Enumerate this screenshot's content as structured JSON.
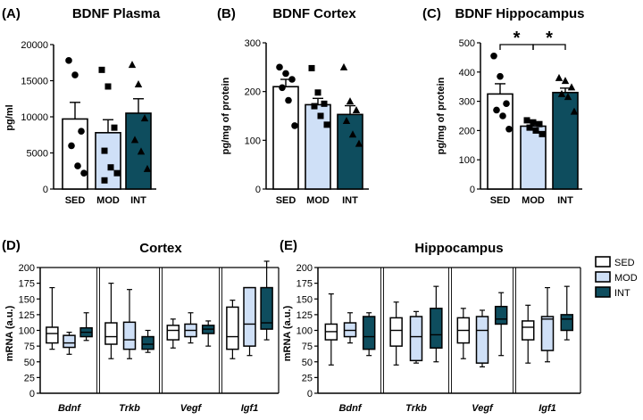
{
  "colors": {
    "sed": "#ffffff",
    "mod": "#cfe0f7",
    "int": "#0e4d5e",
    "stroke": "#000000"
  },
  "chart_data": [
    {
      "panel_label": "(A)",
      "title": "BDNF Plasma",
      "type": "bar",
      "ylabel": "pg/ml",
      "ylim": [
        0,
        20000
      ],
      "yticks": [
        0,
        5000,
        10000,
        15000,
        20000
      ],
      "ytick_labels": [
        "0",
        "5000",
        "10000",
        "15000",
        "20000"
      ],
      "categories": [
        "SED",
        "MOD",
        "INT"
      ],
      "values": [
        9700,
        7800,
        10500
      ],
      "sem": [
        2300,
        1800,
        2000
      ],
      "points": [
        [
          17800,
          15800,
          8000,
          6000,
          3200,
          2200
        ],
        [
          16500,
          14200,
          8500,
          5300,
          3000,
          2200,
          1200
        ],
        [
          17200,
          14500,
          9800,
          6800,
          5200,
          2800
        ]
      ],
      "significance": []
    },
    {
      "panel_label": "(B)",
      "title": "BDNF Cortex",
      "type": "bar",
      "ylabel": "pg/mg of protein",
      "ylim": [
        0,
        300
      ],
      "yticks": [
        0,
        100,
        200,
        300
      ],
      "ytick_labels": [
        "0",
        "100",
        "200",
        "300"
      ],
      "categories": [
        "SED",
        "MOD",
        "INT"
      ],
      "values": [
        210,
        173,
        153
      ],
      "sem": [
        15,
        13,
        18
      ],
      "points": [
        [
          250,
          237,
          225,
          208,
          182,
          130
        ],
        [
          248,
          198,
          175,
          170,
          150,
          132
        ],
        [
          250,
          180,
          162,
          140,
          112,
          93
        ]
      ],
      "significance": []
    },
    {
      "panel_label": "(C)",
      "title": "BDNF Hippocampus",
      "type": "bar",
      "ylabel": "pg/mg of protein",
      "ylim": [
        0,
        500
      ],
      "yticks": [
        0,
        100,
        200,
        300,
        400,
        500
      ],
      "ytick_labels": [
        "0",
        "100",
        "200",
        "300",
        "400",
        "500"
      ],
      "categories": [
        "SED",
        "MOD",
        "INT"
      ],
      "values": [
        325,
        215,
        330
      ],
      "sem": [
        35,
        13,
        15
      ],
      "points": [
        [
          455,
          385,
          292,
          270,
          250,
          205
        ],
        [
          235,
          228,
          222,
          210,
          200,
          188
        ],
        [
          380,
          370,
          348,
          325,
          315,
          265
        ]
      ],
      "significance": [
        {
          "from": 0,
          "to": 1,
          "label": "*"
        },
        {
          "from": 1,
          "to": 2,
          "label": "*"
        }
      ]
    },
    {
      "panel_label": "(D)",
      "title": "Cortex",
      "type": "box",
      "ylabel": "mRNA (a.u.)",
      "ylim": [
        0,
        200
      ],
      "yticks": [
        0,
        25,
        50,
        75,
        100,
        125,
        150,
        175,
        200
      ],
      "ytick_labels": [
        "0",
        "25",
        "50",
        "75",
        "100",
        "125",
        "150",
        "175",
        "200"
      ],
      "categories": [
        "Bdnf",
        "Trkb",
        "Vegf",
        "Igf1"
      ],
      "series": [
        {
          "name": "SED",
          "boxes": [
            [
              70,
              80,
              95,
              105,
              168
            ],
            [
              55,
              78,
              90,
              112,
              175
            ],
            [
              72,
              85,
              100,
              108,
              118
            ],
            [
              55,
              70,
              90,
              137,
              148
            ]
          ]
        },
        {
          "name": "MOD",
          "boxes": [
            [
              62,
              73,
              80,
              92,
              97
            ],
            [
              55,
              70,
              85,
              113,
              165
            ],
            [
              80,
              90,
              100,
              110,
              128
            ],
            [
              60,
              75,
              110,
              168,
              168
            ]
          ]
        },
        {
          "name": "INT",
          "boxes": [
            [
              84,
              90,
              97,
              104,
              128
            ],
            [
              65,
              70,
              78,
              90,
              100
            ],
            [
              75,
              95,
              102,
              108,
              115
            ],
            [
              85,
              102,
              112,
              168,
              210
            ]
          ]
        }
      ]
    },
    {
      "panel_label": "(E)",
      "title": "Hippocampus",
      "type": "box",
      "ylabel": "mRNA (a.u.)",
      "ylim": [
        0,
        200
      ],
      "yticks": [
        0,
        25,
        50,
        75,
        100,
        125,
        150,
        175,
        200
      ],
      "ytick_labels": [
        "0",
        "25",
        "50",
        "75",
        "100",
        "125",
        "150",
        "175",
        "200"
      ],
      "categories": [
        "Bdnf",
        "Trkb",
        "Vegf",
        "Igf1"
      ],
      "series": [
        {
          "name": "SED",
          "boxes": [
            [
              45,
              85,
              98,
              110,
              158
            ],
            [
              45,
              75,
              100,
              120,
              145
            ],
            [
              55,
              80,
              100,
              120,
              135
            ],
            [
              48,
              85,
              105,
              115,
              140
            ]
          ]
        },
        {
          "name": "MOD",
          "boxes": [
            [
              80,
              90,
              100,
              112,
              128
            ],
            [
              48,
              52,
              90,
              122,
              130
            ],
            [
              42,
              48,
              100,
              122,
              132
            ],
            [
              50,
              68,
              118,
              122,
              168
            ]
          ]
        },
        {
          "name": "INT",
          "boxes": [
            [
              60,
              70,
              90,
              122,
              128
            ],
            [
              50,
              72,
              93,
              135,
              170
            ],
            [
              60,
              110,
              118,
              138,
              160
            ],
            [
              85,
              100,
              118,
              125,
              170
            ]
          ]
        }
      ]
    }
  ],
  "legend": {
    "entries": [
      "SED",
      "MOD",
      "INT"
    ]
  }
}
